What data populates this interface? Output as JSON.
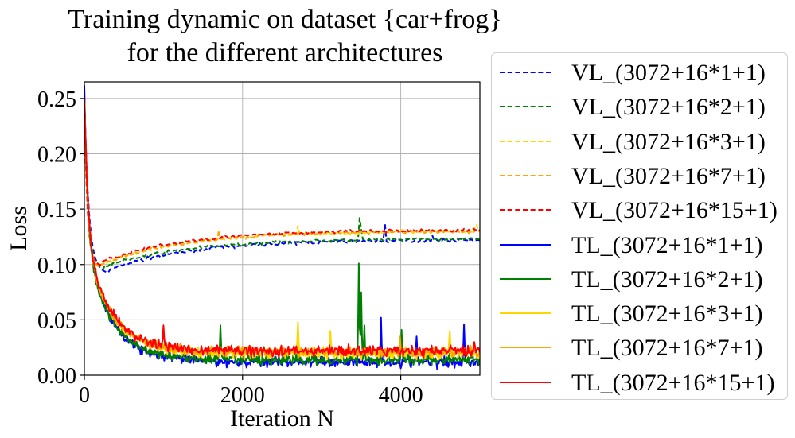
{
  "chart_data": {
    "type": "line",
    "title_lines": [
      "Training dynamic on dataset {car+frog}",
      "for the different architectures"
    ],
    "xlabel": "Iteration N",
    "ylabel": "Loss",
    "xlim": [
      0,
      5000
    ],
    "ylim": [
      0,
      0.265
    ],
    "xticks": [
      0,
      2000,
      4000
    ],
    "xtick_labels": [
      "0",
      "2000",
      "4000"
    ],
    "yticks": [
      0.0,
      0.05,
      0.1,
      0.15,
      0.2,
      0.25
    ],
    "ytick_labels": [
      "0.00",
      "0.05",
      "0.10",
      "0.15",
      "0.20",
      "0.25"
    ],
    "grid": true,
    "legend_position": "outside-right",
    "series": [
      {
        "name": "VL_(3072+16*1+1)",
        "color": "#0000ff",
        "style": "dashed",
        "kind": "val",
        "start": 0.25,
        "min_iter": 300,
        "min_val": 0.095,
        "end_val": 0.122,
        "spikes": [
          {
            "x": 3800,
            "y": 0.137
          },
          {
            "x": 4400,
            "y": 0.126
          }
        ]
      },
      {
        "name": "VL_(3072+16*2+1)",
        "color": "#008000",
        "style": "dashed",
        "kind": "val",
        "start": 0.25,
        "min_iter": 250,
        "min_val": 0.098,
        "end_val": 0.123,
        "spikes": [
          {
            "x": 3480,
            "y": 0.142
          },
          {
            "x": 3500,
            "y": 0.132
          }
        ]
      },
      {
        "name": "VL_(3072+16*3+1)",
        "color": "#ffd700",
        "style": "dashed",
        "kind": "val",
        "start": 0.25,
        "min_iter": 200,
        "min_val": 0.1,
        "end_val": 0.13,
        "spikes": [
          {
            "x": 2700,
            "y": 0.135
          },
          {
            "x": 4950,
            "y": 0.136
          }
        ]
      },
      {
        "name": "VL_(3072+16*7+1)",
        "color": "#ffa500",
        "style": "dashed",
        "kind": "val",
        "start": 0.25,
        "min_iter": 200,
        "min_val": 0.1,
        "end_val": 0.13,
        "spikes": [
          {
            "x": 1700,
            "y": 0.131
          }
        ]
      },
      {
        "name": "VL_(3072+16*15+1)",
        "color": "#ff0000",
        "style": "dashed",
        "kind": "val",
        "start": 0.25,
        "min_iter": 200,
        "min_val": 0.102,
        "end_val": 0.131,
        "spikes": []
      },
      {
        "name": "TL_(3072+16*1+1)",
        "color": "#0000ff",
        "style": "solid",
        "kind": "train",
        "start": 0.26,
        "end_val": 0.012,
        "spikes": [
          {
            "x": 3750,
            "y": 0.052
          },
          {
            "x": 4800,
            "y": 0.046
          },
          {
            "x": 4200,
            "y": 0.035
          }
        ]
      },
      {
        "name": "TL_(3072+16*2+1)",
        "color": "#008000",
        "style": "solid",
        "kind": "train",
        "start": 0.25,
        "end_val": 0.014,
        "spikes": [
          {
            "x": 3470,
            "y": 0.101
          },
          {
            "x": 3500,
            "y": 0.075
          },
          {
            "x": 3540,
            "y": 0.045
          },
          {
            "x": 1720,
            "y": 0.045
          },
          {
            "x": 4010,
            "y": 0.041
          }
        ]
      },
      {
        "name": "TL_(3072+16*3+1)",
        "color": "#ffd700",
        "style": "solid",
        "kind": "train",
        "start": 0.25,
        "end_val": 0.02,
        "spikes": [
          {
            "x": 2700,
            "y": 0.048
          },
          {
            "x": 4620,
            "y": 0.04
          },
          {
            "x": 3110,
            "y": 0.04
          }
        ]
      },
      {
        "name": "TL_(3072+16*7+1)",
        "color": "#ffa500",
        "style": "solid",
        "kind": "train",
        "start": 0.25,
        "end_val": 0.021,
        "spikes": [
          {
            "x": 3990,
            "y": 0.035
          }
        ]
      },
      {
        "name": "TL_(3072+16*15+1)",
        "color": "#ff0000",
        "style": "solid",
        "kind": "train",
        "start": 0.25,
        "end_val": 0.022,
        "spikes": [
          {
            "x": 1000,
            "y": 0.045
          },
          {
            "x": 4930,
            "y": 0.03
          }
        ]
      }
    ]
  }
}
